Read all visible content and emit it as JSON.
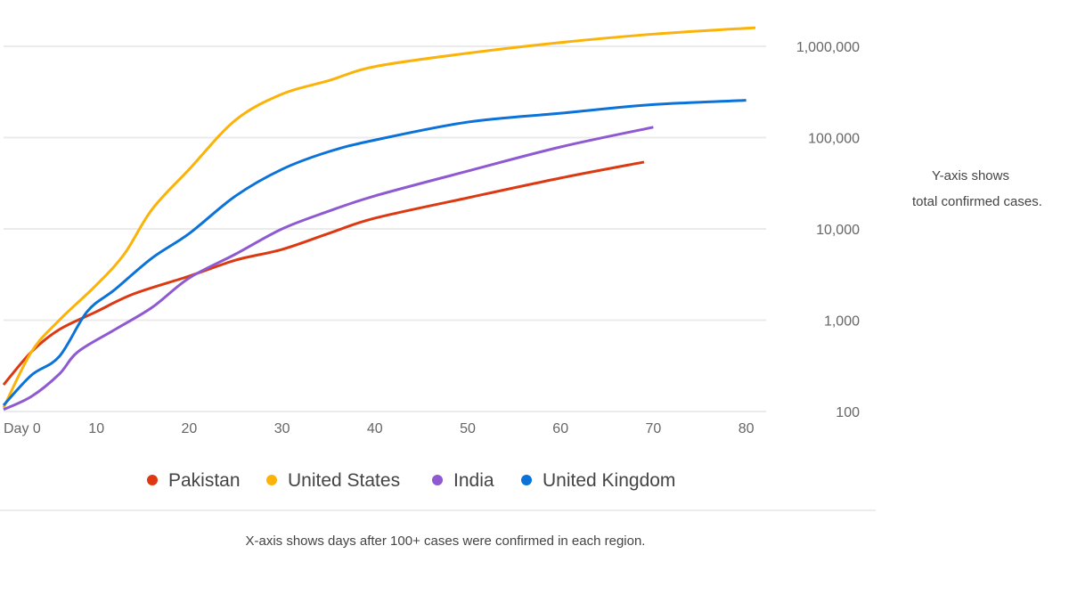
{
  "chart_data": {
    "type": "line",
    "title": "",
    "xlabel": "X-axis shows days after 100+ cases were confirmed in each region.",
    "ylabel": "Y-axis shows total confirmed cases.",
    "ylabel_lines": [
      "Y-axis shows",
      "total confirmed cases."
    ],
    "yscale": "log",
    "ylim": [
      100,
      1600000
    ],
    "xlim": [
      0,
      84
    ],
    "grid": true,
    "legend_position": "bottom",
    "x_ticks": [
      {
        "value": 0,
        "label": "Day 0"
      },
      {
        "value": 10,
        "label": "10"
      },
      {
        "value": 20,
        "label": "20"
      },
      {
        "value": 30,
        "label": "30"
      },
      {
        "value": 40,
        "label": "40"
      },
      {
        "value": 50,
        "label": "50"
      },
      {
        "value": 60,
        "label": "60"
      },
      {
        "value": 70,
        "label": "70"
      },
      {
        "value": 80,
        "label": "80"
      }
    ],
    "y_ticks": [
      {
        "value": 100,
        "label": "100"
      },
      {
        "value": 1000,
        "label": "1,000"
      },
      {
        "value": 10000,
        "label": "10,000"
      },
      {
        "value": 100000,
        "label": "100,000"
      },
      {
        "value": 1000000,
        "label": "1,000,000"
      }
    ],
    "series": [
      {
        "name": "Pakistan",
        "color": "#dc3912",
        "x": [
          0,
          3,
          6,
          10,
          14,
          20,
          25,
          30,
          35,
          40,
          50,
          60,
          69
        ],
        "y": [
          196,
          450,
          790,
          1240,
          1940,
          3040,
          4550,
          5960,
          8900,
          13100,
          21900,
          36100,
          54000
        ]
      },
      {
        "name": "United States",
        "color": "#fbb309",
        "x": [
          0,
          3,
          6,
          10,
          13,
          16,
          20,
          25,
          30,
          35,
          40,
          50,
          60,
          70,
          81
        ],
        "y": [
          110,
          450,
          1000,
          2430,
          5300,
          16400,
          45000,
          156000,
          300000,
          420000,
          600000,
          840000,
          1100000,
          1360000,
          1600000
        ]
      },
      {
        "name": "India",
        "color": "#8e59d1",
        "x": [
          0,
          3,
          6,
          8,
          12,
          16,
          20,
          25,
          30,
          35,
          40,
          50,
          60,
          70
        ],
        "y": [
          105,
          146,
          257,
          450,
          790,
          1380,
          2900,
          5300,
          10000,
          15600,
          23000,
          43000,
          79000,
          130000
        ]
      },
      {
        "name": "United Kingdom",
        "color": "#0a72d8",
        "x": [
          0,
          3,
          6,
          9,
          12,
          16,
          20,
          25,
          30,
          35,
          40,
          50,
          60,
          70,
          80
        ],
        "y": [
          117,
          250,
          400,
          1240,
          2170,
          4800,
          8900,
          23000,
          45000,
          70000,
          94000,
          148000,
          185000,
          230000,
          256000
        ]
      }
    ]
  }
}
